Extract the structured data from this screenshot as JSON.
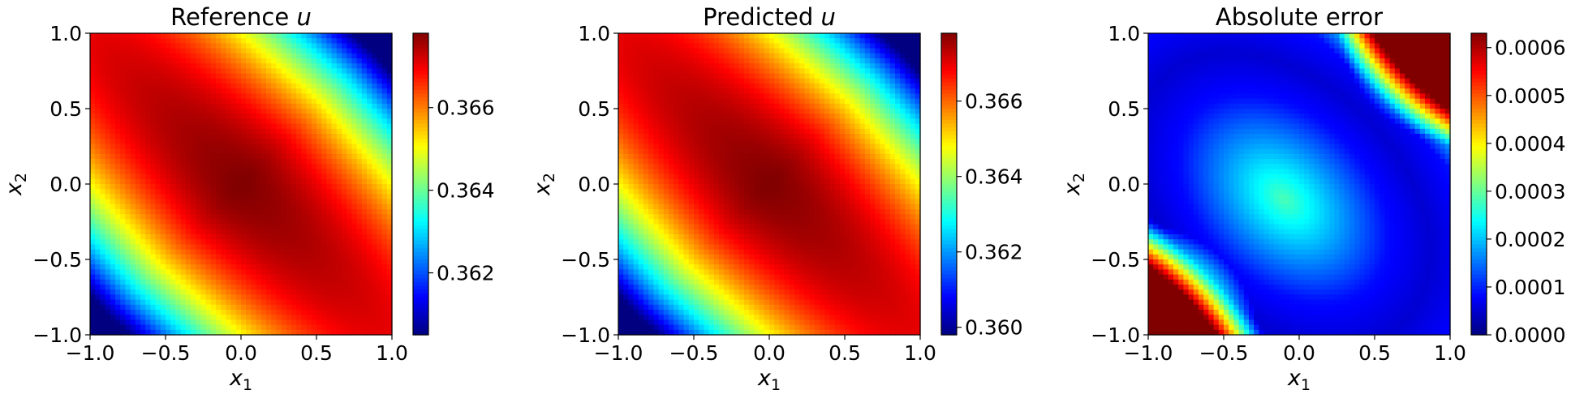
{
  "chart_data": [
    {
      "type": "heatmap",
      "title": "Reference u",
      "title_main": "Reference ",
      "title_var": "u",
      "xlabel": "x1",
      "ylabel": "x2",
      "xlim": [
        -1.0,
        1.0
      ],
      "ylim": [
        -1.0,
        1.0
      ],
      "xticks": [
        "−1.0",
        "−0.5",
        "0.0",
        "0.5",
        "1.0"
      ],
      "yticks": [
        "−1.0",
        "−0.5",
        "0.0",
        "0.5",
        "1.0"
      ],
      "colormap": "jet",
      "field": "band",
      "colorbar": {
        "min": 0.3605,
        "max": 0.3678,
        "ticks": [
          0.362,
          0.364,
          0.366
        ],
        "tick_labels": [
          "0.362",
          "0.364",
          "0.366"
        ]
      }
    },
    {
      "type": "heatmap",
      "title": "Predicted u",
      "title_main": "Predicted ",
      "title_var": "u",
      "xlabel": "x1",
      "ylabel": "x2",
      "xlim": [
        -1.0,
        1.0
      ],
      "ylim": [
        -1.0,
        1.0
      ],
      "xticks": [
        "−1.0",
        "−0.5",
        "0.0",
        "0.5",
        "1.0"
      ],
      "yticks": [
        "−1.0",
        "−0.5",
        "0.0",
        "0.5",
        "1.0"
      ],
      "colormap": "jet",
      "field": "band",
      "colorbar": {
        "min": 0.3598,
        "max": 0.3678,
        "ticks": [
          0.36,
          0.362,
          0.364,
          0.366
        ],
        "tick_labels": [
          "0.360",
          "0.362",
          "0.364",
          "0.366"
        ]
      }
    },
    {
      "type": "heatmap",
      "title": "Absolute error",
      "title_main": "Absolute error",
      "title_var": "",
      "xlabel": "x1",
      "ylabel": "x2",
      "xlim": [
        -1.0,
        1.0
      ],
      "ylim": [
        -1.0,
        1.0
      ],
      "xticks": [
        "−1.0",
        "−0.5",
        "0.0",
        "0.5",
        "1.0"
      ],
      "yticks": [
        "−1.0",
        "−0.5",
        "0.0",
        "0.5",
        "1.0"
      ],
      "colormap": "jet",
      "field": "error",
      "colorbar": {
        "min": 0.0,
        "max": 0.00063,
        "ticks": [
          0.0,
          0.0001,
          0.0002,
          0.0003,
          0.0004,
          0.0005,
          0.0006
        ],
        "tick_labels": [
          "0.0000",
          "0.0001",
          "0.0002",
          "0.0003",
          "0.0004",
          "0.0005",
          "0.0006"
        ]
      }
    }
  ]
}
